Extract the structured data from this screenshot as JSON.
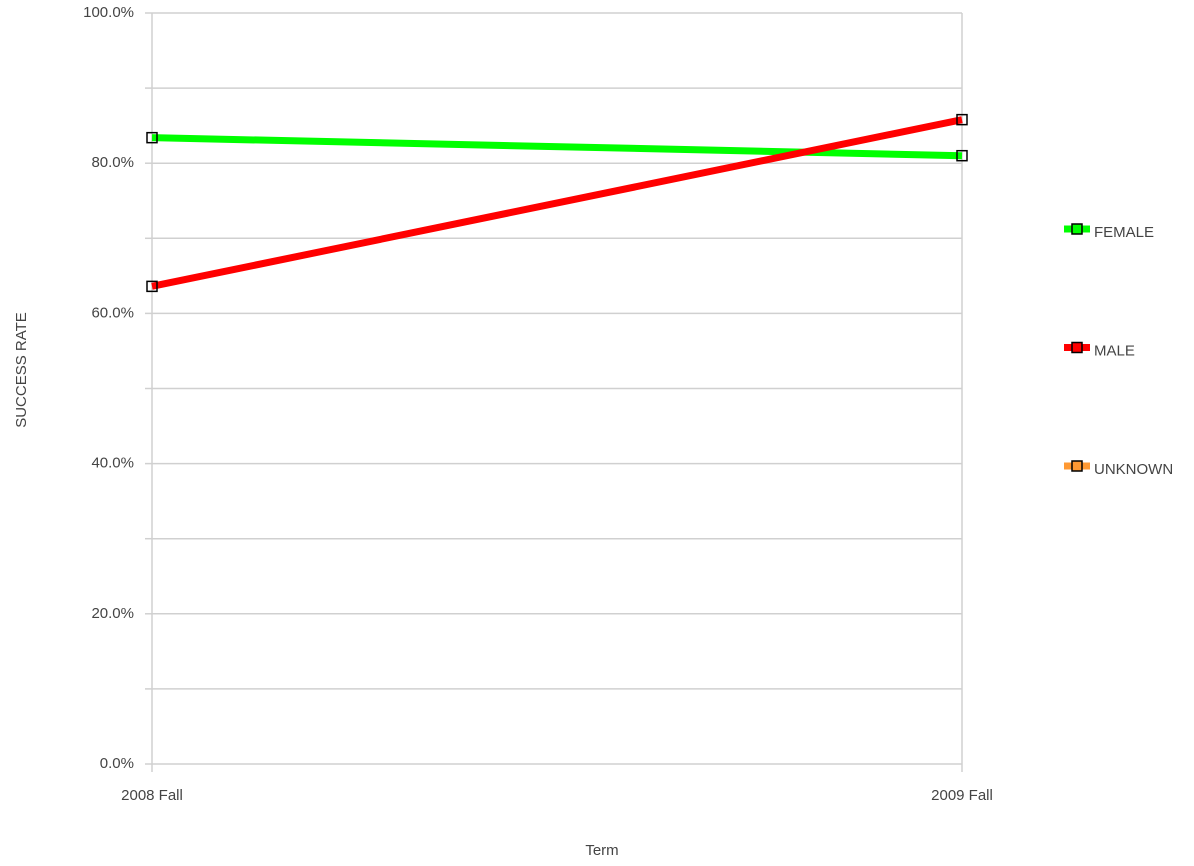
{
  "chart_data": {
    "type": "line",
    "y_label": "SUCCESS RATE",
    "x_label": "Term",
    "categories": [
      "2008 Fall",
      "2009 Fall"
    ],
    "series": [
      {
        "name": "FEMALE",
        "color": "#00ff00",
        "values": [
          83.4,
          81.0
        ]
      },
      {
        "name": "MALE",
        "color": "#ff0000",
        "values": [
          63.6,
          85.8
        ]
      },
      {
        "name": "UNKNOWN",
        "color": "#ff9933",
        "values": [
          null,
          null
        ]
      }
    ],
    "ylim": [
      0,
      100
    ],
    "yticks": [
      {
        "value": 0,
        "label": "0.0%"
      },
      {
        "value": 20,
        "label": "20.0%"
      },
      {
        "value": 40,
        "label": "40.0%"
      },
      {
        "value": 60,
        "label": "60.0%"
      },
      {
        "value": 80,
        "label": "80.0%"
      },
      {
        "value": 100,
        "label": "100.0%"
      }
    ],
    "yticks_minor": [
      10,
      30,
      50,
      70,
      90
    ],
    "grid": true,
    "legend": "right"
  }
}
